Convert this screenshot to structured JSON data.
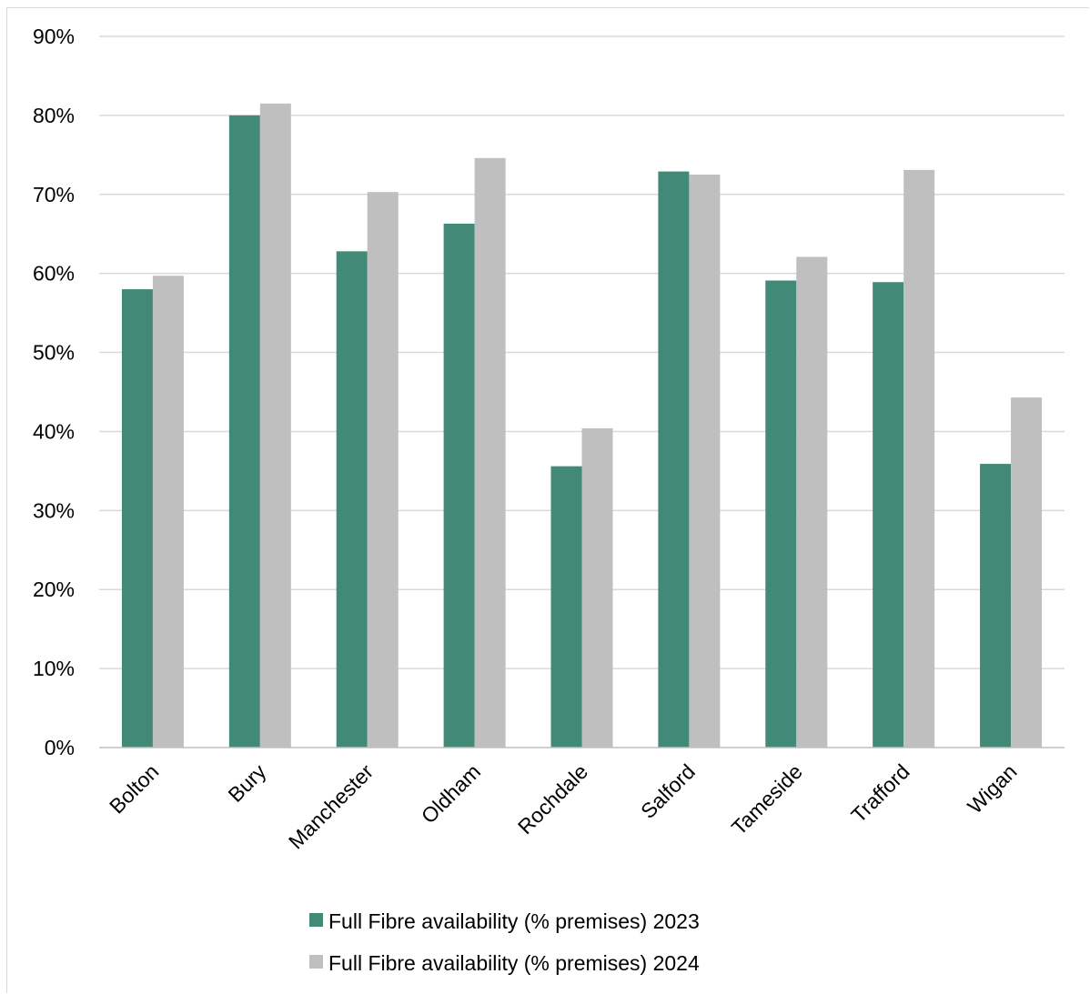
{
  "chart_data": {
    "type": "bar",
    "categories": [
      "Bolton",
      "Bury",
      "Manchester",
      "Oldham",
      "Rochdale",
      "Salford",
      "Tameside",
      "Trafford",
      "Wigan"
    ],
    "series": [
      {
        "name": "Full Fibre availability (% premises) 2023",
        "color": "#428977",
        "values": [
          58.0,
          80.0,
          62.8,
          66.3,
          35.6,
          72.9,
          59.1,
          58.9,
          35.9
        ]
      },
      {
        "name": "Full Fibre availability (% premises) 2024",
        "color": "#bfbfbf",
        "values": [
          59.7,
          81.5,
          70.3,
          74.6,
          40.4,
          72.5,
          62.1,
          73.1,
          44.3
        ]
      }
    ],
    "ylim": [
      0,
      90
    ],
    "yticks": [
      "0%",
      "10%",
      "20%",
      "30%",
      "40%",
      "50%",
      "60%",
      "70%",
      "80%",
      "90%"
    ],
    "grid": true,
    "legend": "bottom"
  }
}
